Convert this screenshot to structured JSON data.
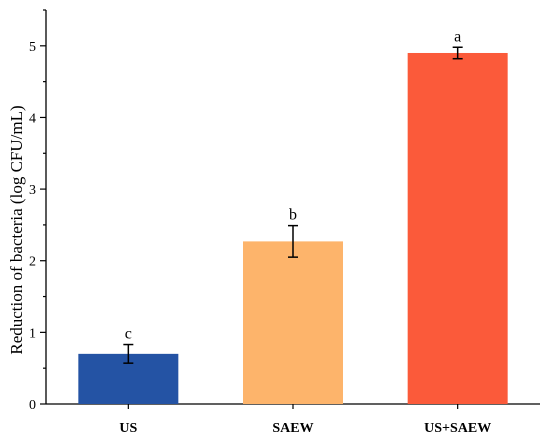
{
  "chart_data": {
    "type": "bar",
    "title": "",
    "xlabel": "",
    "ylabel": "Reduction of bacteria (log CFU/mL)",
    "ylim": [
      0,
      5.5
    ],
    "yticks": [
      0,
      1,
      2,
      3,
      4,
      5
    ],
    "grid": false,
    "categories": [
      "US",
      "SAEW",
      "US+SAEW"
    ],
    "values": [
      0.7,
      2.27,
      4.9
    ],
    "errors": [
      0.13,
      0.22,
      0.08
    ],
    "significance_labels": [
      "c",
      "b",
      "a"
    ],
    "colors": [
      "#2453a4",
      "#fdb46b",
      "#fb5a3a"
    ]
  }
}
